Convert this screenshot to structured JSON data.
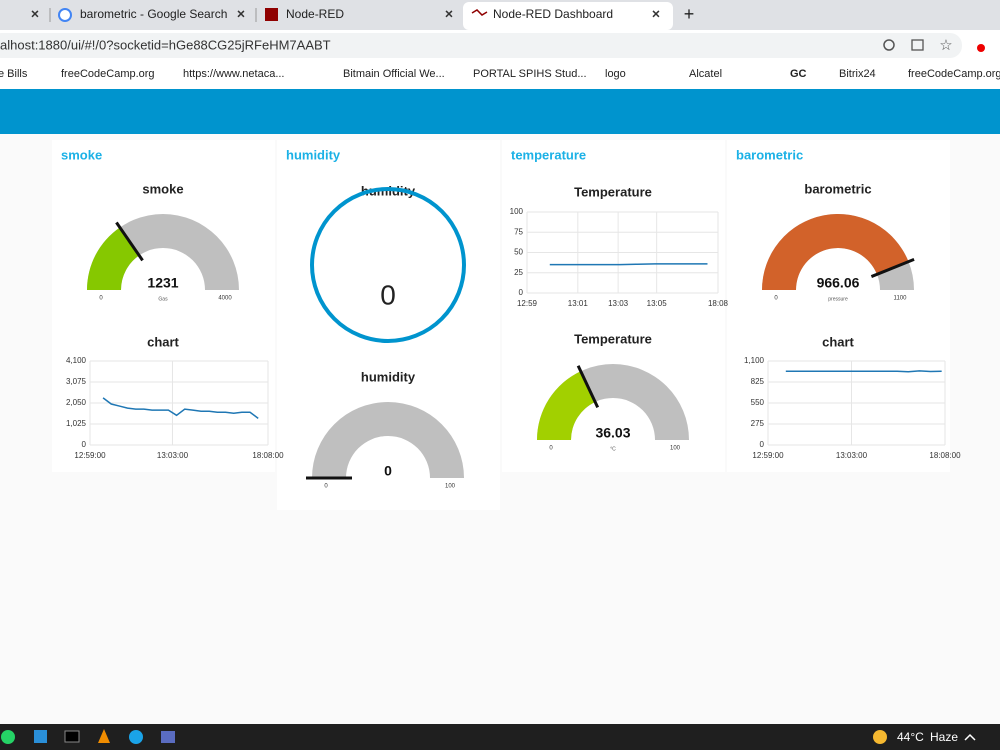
{
  "browser": {
    "tabs": [
      "barometric - Google Search",
      "Node-RED",
      "Node-RED Dashboard"
    ],
    "url": "alhost:1880/ui/#!/0?socketid=hGe88CG25jRFeHM7AABT",
    "bookmarks": [
      "e Bills",
      "freeCodeCamp.org",
      "https://www.netaca...",
      "Bitmain Official We...",
      "PORTAL SPIHS Stud...",
      "logo",
      "Alcatel",
      "GC",
      "Bitrix24",
      "freeCodeCamp.org"
    ]
  },
  "groups": [
    {
      "title": "smoke",
      "widgets": [
        {
          "type": "gauge",
          "title": "smoke",
          "value": 1231,
          "min": 0,
          "max": 4000,
          "units": "Gas",
          "color": "#86c800"
        },
        {
          "type": "line",
          "title": "chart",
          "color": "#1f77b4",
          "values": [
            2300,
            2000,
            1900,
            1800,
            1750,
            1750,
            1700,
            1700,
            1700,
            1450,
            1750,
            1700,
            1650,
            1650,
            1600,
            1600,
            1550,
            1600,
            1600,
            1300
          ],
          "ylim": [
            0,
            4100
          ],
          "yticks": [
            0,
            {
              "value": 1025,
              "label": "1,025"
            },
            {
              "value": 2050,
              "label": "2,050"
            },
            {
              "value": 3075,
              "label": "3,075"
            },
            {
              "value": 4100,
              "label": "4,100"
            }
          ],
          "xlim": [
            -1.6,
            20.2
          ],
          "xticks": [
            {
              "value": -1.6,
              "label": "12:59:00"
            },
            {
              "value": 8.5,
              "label": "13:03:00"
            },
            {
              "value": 20.2,
              "label": "18:08:00"
            }
          ]
        }
      ]
    },
    {
      "title": "humidity",
      "widgets": [
        {
          "type": "donut",
          "title": "humidity",
          "value": 0,
          "color": "#0094ce"
        },
        {
          "type": "gauge",
          "title": "humidity",
          "value": 0,
          "min": 0,
          "max": 100,
          "color": "#86c800"
        }
      ]
    },
    {
      "title": "temperature",
      "widgets": [
        {
          "type": "line",
          "title": "Temperature",
          "color": "#1f77b4",
          "values": [
            35,
            35,
            35,
            35,
            35,
            35.5,
            36,
            36,
            36,
            36
          ],
          "ylim": [
            0,
            100
          ],
          "yticks": [
            0,
            25,
            50,
            75,
            100
          ],
          "xlim": [
            -1.3,
            9.6
          ],
          "xticks": [
            {
              "value": -1.3,
              "label": "12:59"
            },
            {
              "value": 1.6,
              "label": "13:01"
            },
            {
              "value": 3.9,
              "label": "13:03"
            },
            {
              "value": 6.1,
              "label": "13:05"
            },
            {
              "value": 9.6,
              "label": "18:08"
            }
          ]
        },
        {
          "type": "gauge",
          "title": "Temperature",
          "value": 36.03,
          "min": 0,
          "max": 100,
          "units": "°C",
          "color": "#a2d000"
        }
      ]
    },
    {
      "title": "barometric",
      "widgets": [
        {
          "type": "gauge",
          "title": "barometric",
          "value": 966.06,
          "min": 0,
          "max": 1100,
          "units": "pressure",
          "color": "#d2622a"
        },
        {
          "type": "line",
          "title": "chart",
          "color": "#1f77b4",
          "values": [
            966,
            966,
            966,
            966,
            966,
            966,
            966,
            966,
            966,
            966,
            966,
            960,
            970,
            962,
            966
          ],
          "ylim": [
            0,
            1100
          ],
          "yticks": [
            0,
            275,
            550,
            825,
            {
              "value": 1100,
              "label": "1,100"
            }
          ],
          "xlim": [
            -1.6,
            14.3
          ],
          "xticks": [
            {
              "value": -1.6,
              "label": "12:59:00"
            },
            {
              "value": 5.9,
              "label": "13:03:00"
            },
            {
              "value": 14.3,
              "label": "18:08:00"
            }
          ]
        }
      ]
    }
  ],
  "taskbar": {
    "temperature": "44°C",
    "weather": "Haze"
  }
}
